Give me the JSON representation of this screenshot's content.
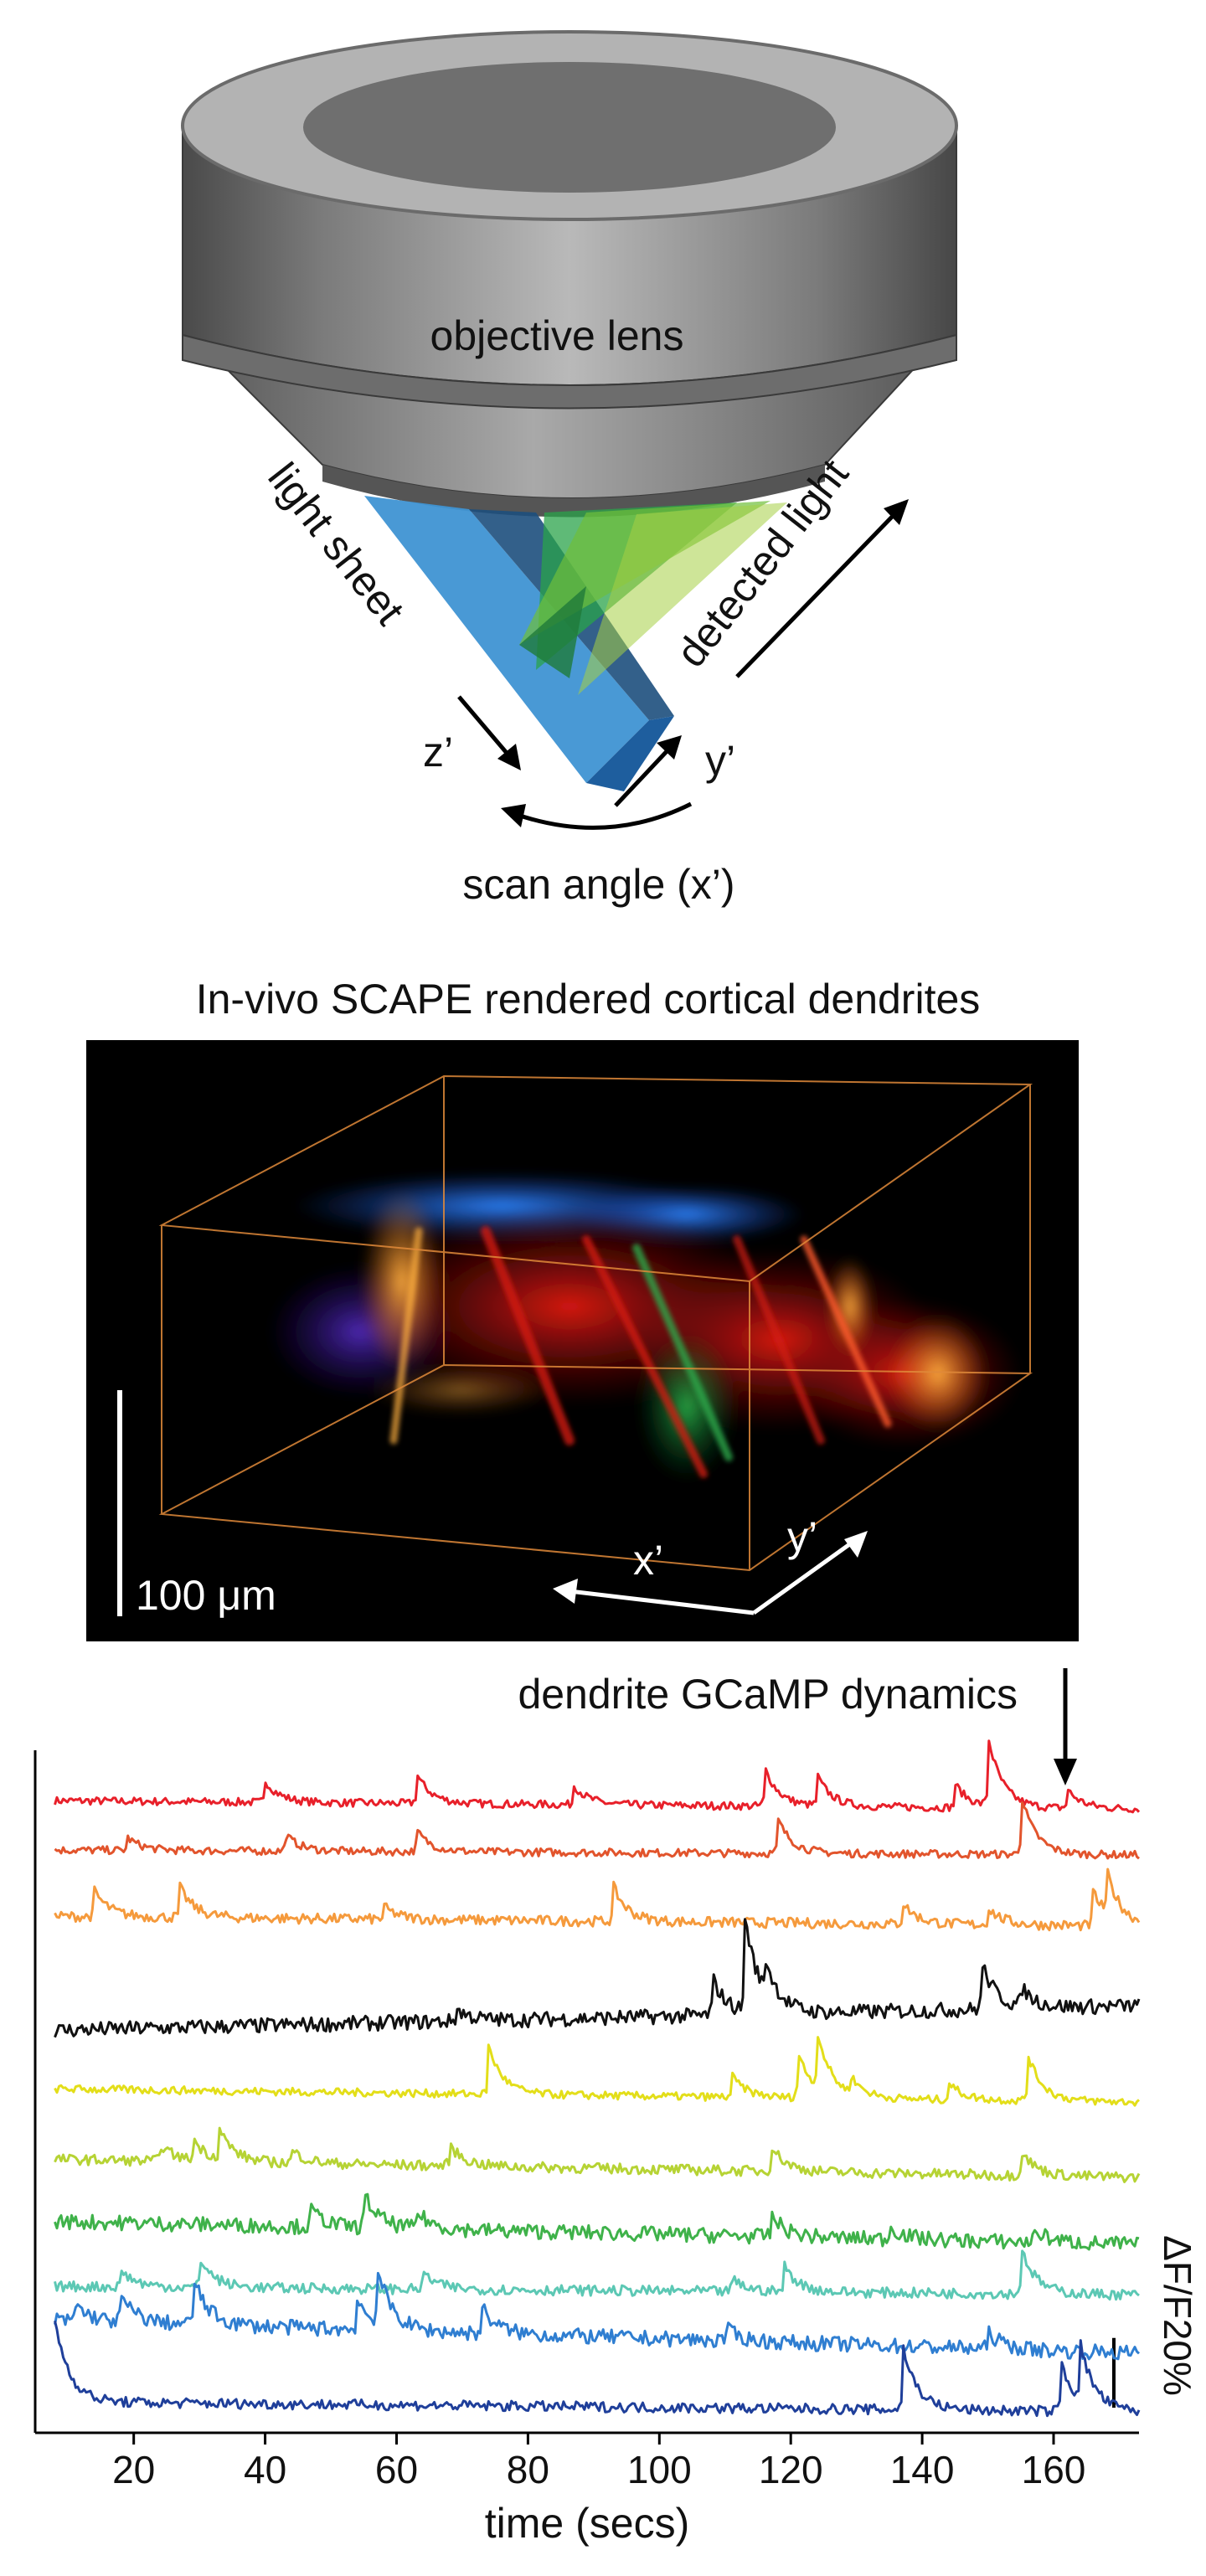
{
  "diagram": {
    "lens_label": "objective lens",
    "light_sheet_label": "light sheet",
    "detected_light_label": "detected light",
    "z_label": "z’",
    "y_label": "y’",
    "scan_angle_label": "scan angle (x’)"
  },
  "volume": {
    "title": "In-vivo SCAPE rendered cortical dendrites",
    "scale_bar_label": "100 μm",
    "x_label": "x’",
    "y_label": "y’"
  },
  "traces_header": "dendrite GCaMP dynamics",
  "chart_data": {
    "type": "line",
    "title": "",
    "xlabel": "time (secs)",
    "ylabel": "",
    "xlim": [
      5,
      173
    ],
    "xticks": [
      "20",
      "40",
      "60",
      "80",
      "100",
      "120",
      "140",
      "160"
    ],
    "scale_bar_label": "ΔF/F20%",
    "scale_bar_value": 20,
    "series": [
      {
        "color": "#e8202a",
        "baseline": 0.5,
        "peaks": [
          [
            40,
            10
          ],
          [
            63,
            14
          ],
          [
            87,
            9
          ],
          [
            116,
            18
          ],
          [
            124,
            14
          ],
          [
            145,
            11
          ],
          [
            150,
            32
          ],
          [
            162,
            9
          ]
        ]
      },
      {
        "color": "#e2542c",
        "baseline": 0.5,
        "peaks": [
          [
            19,
            6
          ],
          [
            43,
            8
          ],
          [
            63,
            10
          ],
          [
            118,
            16
          ],
          [
            155,
            28
          ]
        ]
      },
      {
        "color": "#f59a3c",
        "baseline": 1,
        "peaks": [
          [
            14,
            12
          ],
          [
            27,
            14
          ],
          [
            58,
            6
          ],
          [
            93,
            16
          ],
          [
            137,
            10
          ],
          [
            150,
            8
          ],
          [
            166,
            16
          ],
          [
            168,
            20
          ]
        ]
      },
      {
        "color": "#111111",
        "baseline": 2,
        "peaks": [
          [
            69,
            6
          ],
          [
            108,
            18
          ],
          [
            113,
            44
          ],
          [
            116,
            16
          ],
          [
            149,
            22
          ],
          [
            155,
            9
          ]
        ]
      },
      {
        "color": "#e3de19",
        "baseline": 0.5,
        "peaks": [
          [
            74,
            22
          ],
          [
            111,
            10
          ],
          [
            121,
            22
          ],
          [
            124,
            26
          ],
          [
            129,
            8
          ],
          [
            144,
            8
          ],
          [
            156,
            22
          ]
        ]
      },
      {
        "color": "#b6d334",
        "baseline": 1,
        "peaks": [
          [
            24,
            8
          ],
          [
            29,
            10
          ],
          [
            33,
            14
          ],
          [
            44,
            6
          ],
          [
            68,
            10
          ],
          [
            117,
            12
          ],
          [
            155,
            12
          ]
        ]
      },
      {
        "color": "#3fb24a",
        "baseline": 2,
        "peaks": [
          [
            47,
            8
          ],
          [
            55,
            16
          ],
          [
            63,
            8
          ],
          [
            117,
            10
          ],
          [
            135,
            6
          ],
          [
            157,
            6
          ]
        ]
      },
      {
        "color": "#5cc8b4",
        "baseline": 1,
        "peaks": [
          [
            18,
            8
          ],
          [
            30,
            14
          ],
          [
            64,
            8
          ],
          [
            111,
            6
          ],
          [
            119,
            12
          ],
          [
            155,
            22
          ]
        ]
      },
      {
        "color": "#2f7ed1",
        "baseline": 2,
        "peaks": [
          [
            11,
            8
          ],
          [
            18,
            12
          ],
          [
            29,
            22
          ],
          [
            54,
            14
          ],
          [
            57,
            26
          ],
          [
            73,
            12
          ],
          [
            110,
            6
          ],
          [
            150,
            8
          ]
        ]
      },
      {
        "color": "#1f3f9a",
        "baseline": 1,
        "peaks": [
          [
            8,
            38
          ],
          [
            137,
            30
          ],
          [
            161,
            24
          ],
          [
            164,
            26
          ]
        ]
      }
    ]
  }
}
